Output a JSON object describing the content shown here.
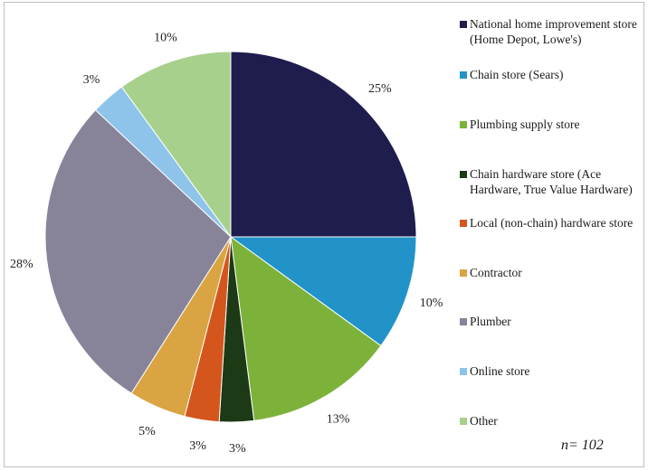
{
  "chart_data": {
    "type": "pie",
    "slices": [
      {
        "label": "National home improvement store (Home Depot, Lowe's)",
        "value": 25,
        "display": "25%",
        "color": "#1f1d4e"
      },
      {
        "label": "Chain store (Sears)",
        "value": 10,
        "display": "10%",
        "color": "#2293c9"
      },
      {
        "label": "Plumbing supply store",
        "value": 13,
        "display": "13%",
        "color": "#7cb23a"
      },
      {
        "label": "Chain hardware store (Ace Hardware, True Value Hardware)",
        "value": 3,
        "display": "3%",
        "color": "#1c3a16"
      },
      {
        "label": "Local (non-chain) hardware store",
        "value": 3,
        "display": "3%",
        "color": "#d4561d"
      },
      {
        "label": "Contractor",
        "value": 5,
        "display": "5%",
        "color": "#d9a441"
      },
      {
        "label": "Plumber",
        "value": 28,
        "display": "28%",
        "color": "#87849a"
      },
      {
        "label": "Online store",
        "value": 3,
        "display": "3%",
        "color": "#8ec4ea"
      },
      {
        "label": "Other",
        "value": 10,
        "display": "10%",
        "color": "#a8d08d"
      }
    ],
    "legend_position": "right",
    "note": "n= 102"
  }
}
